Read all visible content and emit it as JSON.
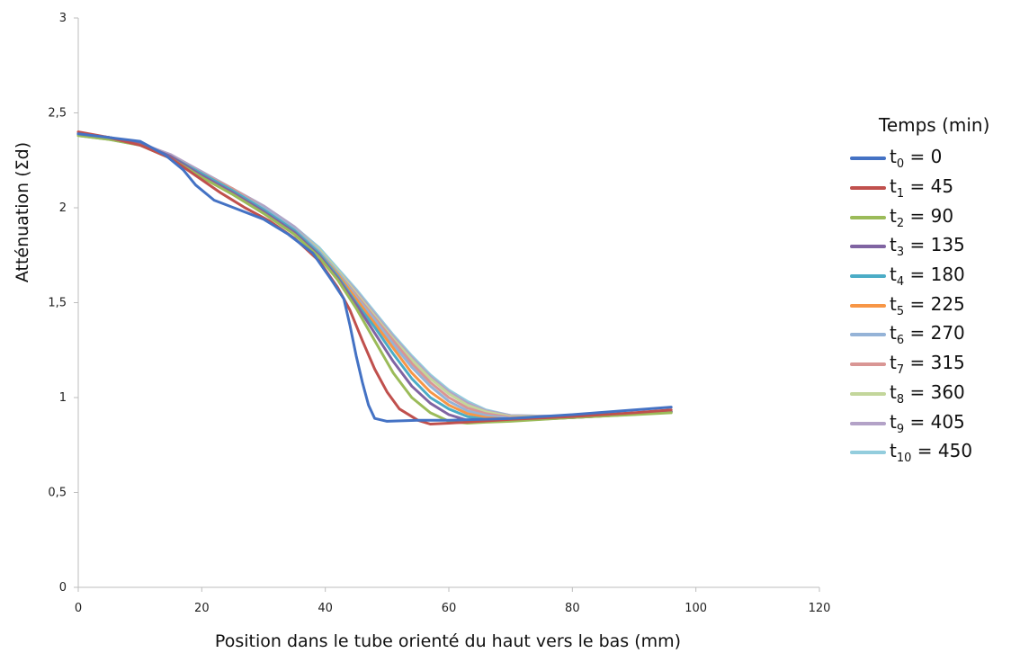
{
  "chart_data": {
    "type": "line",
    "xlabel": "Position dans le tube orienté du haut vers le bas (mm)",
    "ylabel": "Atténuation (Σd)",
    "xlim": [
      0,
      120
    ],
    "ylim": [
      0,
      3
    ],
    "x_ticks": [
      "0",
      "20",
      "40",
      "60",
      "80",
      "100",
      "120"
    ],
    "y_ticks": [
      "0",
      "0,5",
      "1",
      "1,5",
      "2",
      "2,5",
      "3"
    ],
    "grid": false,
    "legend_title": "Temps (min)",
    "legend_position": "right",
    "series": [
      {
        "name": "t0 = 0",
        "symbol": "t",
        "sub": "0",
        "value": "0",
        "color": "#4472C4",
        "points": [
          [
            0,
            2.39
          ],
          [
            5,
            2.37
          ],
          [
            10,
            2.35
          ],
          [
            14,
            2.28
          ],
          [
            17,
            2.2
          ],
          [
            19,
            2.12
          ],
          [
            22,
            2.04
          ],
          [
            26,
            1.99
          ],
          [
            30,
            1.94
          ],
          [
            34,
            1.86
          ],
          [
            38,
            1.76
          ],
          [
            41,
            1.62
          ],
          [
            43,
            1.52
          ],
          [
            44,
            1.38
          ],
          [
            45,
            1.22
          ],
          [
            46,
            1.08
          ],
          [
            47,
            0.96
          ],
          [
            48,
            0.89
          ],
          [
            50,
            0.875
          ],
          [
            55,
            0.88
          ],
          [
            60,
            0.88
          ],
          [
            70,
            0.89
          ],
          [
            80,
            0.91
          ],
          [
            90,
            0.935
          ],
          [
            96,
            0.95
          ]
        ]
      },
      {
        "name": "t1 = 45",
        "symbol": "t",
        "sub": "1",
        "value": "45",
        "color": "#C0504D",
        "points": [
          [
            0,
            2.4
          ],
          [
            5,
            2.37
          ],
          [
            10,
            2.33
          ],
          [
            15,
            2.26
          ],
          [
            19,
            2.17
          ],
          [
            23,
            2.08
          ],
          [
            27,
            2.0
          ],
          [
            31,
            1.93
          ],
          [
            35,
            1.84
          ],
          [
            39,
            1.72
          ],
          [
            42,
            1.58
          ],
          [
            44,
            1.46
          ],
          [
            46,
            1.3
          ],
          [
            48,
            1.15
          ],
          [
            50,
            1.03
          ],
          [
            52,
            0.94
          ],
          [
            55,
            0.88
          ],
          [
            57,
            0.86
          ],
          [
            60,
            0.865
          ],
          [
            65,
            0.875
          ],
          [
            70,
            0.885
          ],
          [
            80,
            0.9
          ],
          [
            90,
            0.92
          ],
          [
            96,
            0.935
          ]
        ]
      },
      {
        "name": "t2 = 90",
        "symbol": "t",
        "sub": "2",
        "value": "90",
        "color": "#9BBB59",
        "points": [
          [
            0,
            2.38
          ],
          [
            5,
            2.36
          ],
          [
            10,
            2.33
          ],
          [
            15,
            2.26
          ],
          [
            20,
            2.16
          ],
          [
            25,
            2.07
          ],
          [
            30,
            1.97
          ],
          [
            35,
            1.86
          ],
          [
            39,
            1.74
          ],
          [
            42,
            1.62
          ],
          [
            45,
            1.47
          ],
          [
            48,
            1.3
          ],
          [
            51,
            1.13
          ],
          [
            54,
            1.0
          ],
          [
            57,
            0.92
          ],
          [
            60,
            0.875
          ],
          [
            63,
            0.865
          ],
          [
            66,
            0.87
          ],
          [
            70,
            0.875
          ],
          [
            80,
            0.895
          ],
          [
            90,
            0.91
          ],
          [
            96,
            0.92
          ]
        ]
      },
      {
        "name": "t3 = 135",
        "symbol": "t",
        "sub": "3",
        "value": "135",
        "color": "#8064A2",
        "points": [
          [
            0,
            2.39
          ],
          [
            5,
            2.37
          ],
          [
            10,
            2.34
          ],
          [
            15,
            2.27
          ],
          [
            20,
            2.17
          ],
          [
            25,
            2.08
          ],
          [
            30,
            1.98
          ],
          [
            35,
            1.87
          ],
          [
            39,
            1.75
          ],
          [
            42,
            1.63
          ],
          [
            45,
            1.49
          ],
          [
            48,
            1.34
          ],
          [
            51,
            1.19
          ],
          [
            54,
            1.06
          ],
          [
            57,
            0.97
          ],
          [
            60,
            0.91
          ],
          [
            63,
            0.88
          ],
          [
            66,
            0.875
          ],
          [
            70,
            0.878
          ],
          [
            80,
            0.895
          ],
          [
            90,
            0.912
          ],
          [
            96,
            0.925
          ]
        ]
      },
      {
        "name": "t4 = 180",
        "symbol": "t",
        "sub": "4",
        "value": "180",
        "color": "#4BACC6",
        "points": [
          [
            0,
            2.39
          ],
          [
            5,
            2.37
          ],
          [
            10,
            2.34
          ],
          [
            15,
            2.27
          ],
          [
            20,
            2.18
          ],
          [
            25,
            2.09
          ],
          [
            30,
            1.99
          ],
          [
            35,
            1.88
          ],
          [
            39,
            1.76
          ],
          [
            42,
            1.64
          ],
          [
            45,
            1.5
          ],
          [
            48,
            1.37
          ],
          [
            51,
            1.23
          ],
          [
            54,
            1.1
          ],
          [
            57,
            1.0
          ],
          [
            60,
            0.94
          ],
          [
            63,
            0.9
          ],
          [
            66,
            0.885
          ],
          [
            70,
            0.88
          ],
          [
            80,
            0.895
          ],
          [
            90,
            0.912
          ],
          [
            96,
            0.925
          ]
        ]
      },
      {
        "name": "t5 = 225",
        "symbol": "t",
        "sub": "5",
        "value": "225",
        "color": "#F79646",
        "points": [
          [
            0,
            2.39
          ],
          [
            5,
            2.37
          ],
          [
            10,
            2.34
          ],
          [
            15,
            2.27
          ],
          [
            20,
            2.18
          ],
          [
            25,
            2.09
          ],
          [
            30,
            1.99
          ],
          [
            35,
            1.88
          ],
          [
            39,
            1.76
          ],
          [
            42,
            1.65
          ],
          [
            45,
            1.52
          ],
          [
            48,
            1.39
          ],
          [
            51,
            1.26
          ],
          [
            54,
            1.13
          ],
          [
            57,
            1.03
          ],
          [
            60,
            0.96
          ],
          [
            63,
            0.915
          ],
          [
            66,
            0.895
          ],
          [
            70,
            0.885
          ],
          [
            80,
            0.895
          ],
          [
            90,
            0.912
          ],
          [
            96,
            0.925
          ]
        ]
      },
      {
        "name": "t6 = 270",
        "symbol": "t",
        "sub": "6",
        "value": "270",
        "color": "#95B3D7",
        "points": [
          [
            0,
            2.39
          ],
          [
            5,
            2.37
          ],
          [
            10,
            2.34
          ],
          [
            15,
            2.27
          ],
          [
            20,
            2.18
          ],
          [
            25,
            2.09
          ],
          [
            30,
            2.0
          ],
          [
            35,
            1.89
          ],
          [
            39,
            1.77
          ],
          [
            42,
            1.66
          ],
          [
            45,
            1.53
          ],
          [
            48,
            1.41
          ],
          [
            51,
            1.28
          ],
          [
            54,
            1.16
          ],
          [
            57,
            1.06
          ],
          [
            60,
            0.98
          ],
          [
            63,
            0.93
          ],
          [
            66,
            0.905
          ],
          [
            70,
            0.89
          ],
          [
            80,
            0.897
          ],
          [
            90,
            0.912
          ],
          [
            96,
            0.925
          ]
        ]
      },
      {
        "name": "t7 = 315",
        "symbol": "t",
        "sub": "7",
        "value": "315",
        "color": "#D99694",
        "points": [
          [
            0,
            2.39
          ],
          [
            5,
            2.37
          ],
          [
            10,
            2.34
          ],
          [
            15,
            2.27
          ],
          [
            20,
            2.18
          ],
          [
            25,
            2.1
          ],
          [
            30,
            2.0
          ],
          [
            35,
            1.89
          ],
          [
            39,
            1.77
          ],
          [
            42,
            1.66
          ],
          [
            45,
            1.54
          ],
          [
            48,
            1.42
          ],
          [
            51,
            1.3
          ],
          [
            54,
            1.18
          ],
          [
            57,
            1.08
          ],
          [
            60,
            1.0
          ],
          [
            63,
            0.945
          ],
          [
            66,
            0.915
          ],
          [
            70,
            0.895
          ],
          [
            80,
            0.898
          ],
          [
            90,
            0.912
          ],
          [
            96,
            0.925
          ]
        ]
      },
      {
        "name": "t8 = 360",
        "symbol": "t",
        "sub": "8",
        "value": "360",
        "color": "#C3D69B",
        "points": [
          [
            0,
            2.38
          ],
          [
            5,
            2.36
          ],
          [
            10,
            2.34
          ],
          [
            15,
            2.27
          ],
          [
            20,
            2.18
          ],
          [
            25,
            2.1
          ],
          [
            30,
            2.0
          ],
          [
            35,
            1.89
          ],
          [
            39,
            1.78
          ],
          [
            42,
            1.67
          ],
          [
            45,
            1.55
          ],
          [
            48,
            1.43
          ],
          [
            51,
            1.31
          ],
          [
            54,
            1.2
          ],
          [
            57,
            1.1
          ],
          [
            60,
            1.02
          ],
          [
            63,
            0.96
          ],
          [
            66,
            0.925
          ],
          [
            70,
            0.9
          ],
          [
            80,
            0.9
          ],
          [
            90,
            0.912
          ],
          [
            96,
            0.925
          ]
        ]
      },
      {
        "name": "t9 = 405",
        "symbol": "t",
        "sub": "9",
        "value": "405",
        "color": "#B3A2C7",
        "points": [
          [
            0,
            2.39
          ],
          [
            5,
            2.37
          ],
          [
            10,
            2.34
          ],
          [
            15,
            2.28
          ],
          [
            20,
            2.19
          ],
          [
            25,
            2.1
          ],
          [
            30,
            2.01
          ],
          [
            35,
            1.9
          ],
          [
            39,
            1.78
          ],
          [
            42,
            1.67
          ],
          [
            45,
            1.56
          ],
          [
            48,
            1.44
          ],
          [
            51,
            1.32
          ],
          [
            54,
            1.21
          ],
          [
            57,
            1.11
          ],
          [
            60,
            1.03
          ],
          [
            63,
            0.97
          ],
          [
            66,
            0.93
          ],
          [
            70,
            0.905
          ],
          [
            80,
            0.9
          ],
          [
            90,
            0.912
          ],
          [
            96,
            0.925
          ]
        ]
      },
      {
        "name": "t10 = 450",
        "symbol": "t",
        "sub": "10",
        "value": "450",
        "color": "#93CDDD",
        "points": [
          [
            0,
            2.38
          ],
          [
            5,
            2.36
          ],
          [
            10,
            2.33
          ],
          [
            15,
            2.27
          ],
          [
            20,
            2.19
          ],
          [
            25,
            2.1
          ],
          [
            30,
            2.01
          ],
          [
            35,
            1.9
          ],
          [
            39,
            1.79
          ],
          [
            42,
            1.68
          ],
          [
            45,
            1.57
          ],
          [
            48,
            1.45
          ],
          [
            51,
            1.33
          ],
          [
            54,
            1.22
          ],
          [
            57,
            1.12
          ],
          [
            60,
            1.04
          ],
          [
            63,
            0.98
          ],
          [
            66,
            0.935
          ],
          [
            70,
            0.905
          ],
          [
            80,
            0.9
          ],
          [
            90,
            0.912
          ],
          [
            96,
            0.925
          ]
        ]
      }
    ]
  }
}
